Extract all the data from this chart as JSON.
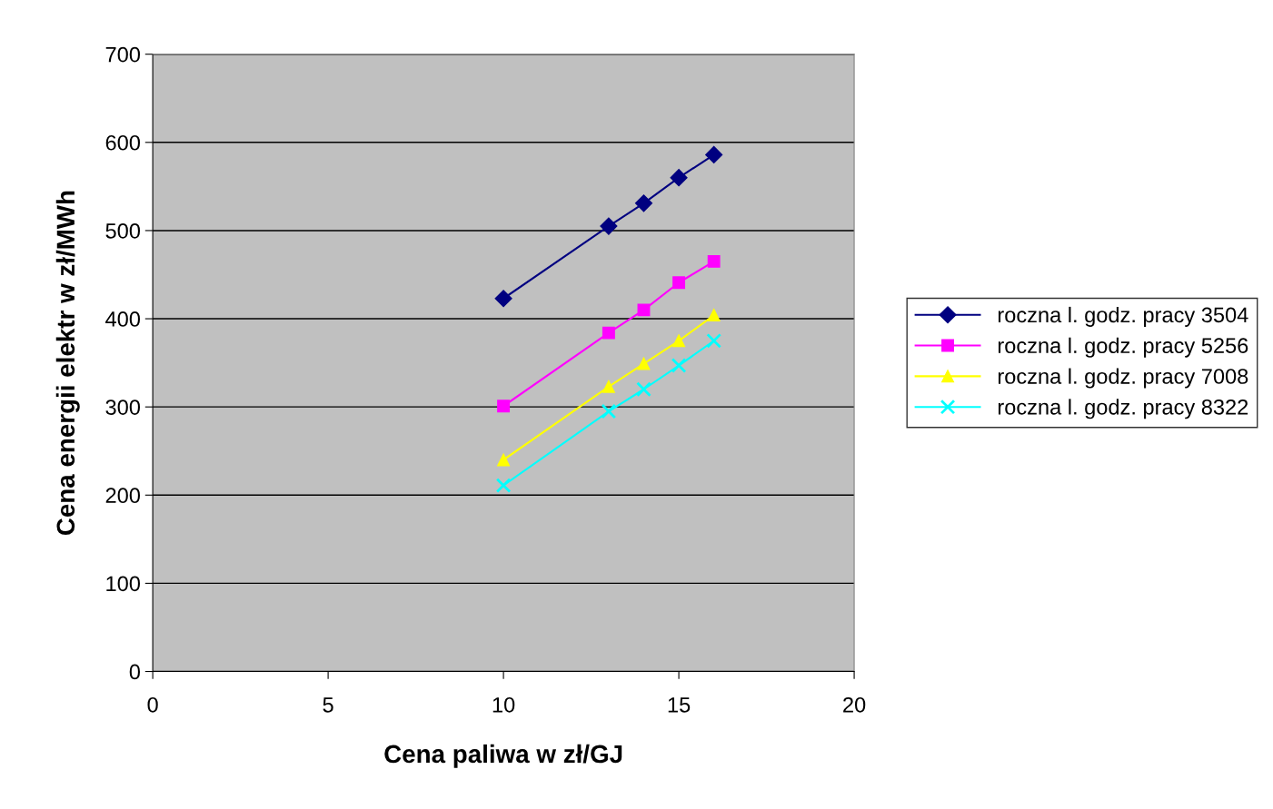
{
  "chart_data": {
    "type": "line",
    "xlabel": "Cena paliwa w zł/GJ",
    "ylabel": "Cena energii elektr w zł/MWh",
    "xlim": [
      0,
      20
    ],
    "xticks": [
      0,
      5,
      10,
      15,
      20
    ],
    "ylim": [
      0,
      700
    ],
    "yticks": [
      0,
      100,
      200,
      300,
      400,
      500,
      600,
      700
    ],
    "grid": "y",
    "legend": "right",
    "series": [
      {
        "name": "roczna l. godz. pracy 3504",
        "color": "#000080",
        "marker": "diamond",
        "x": [
          10,
          13,
          14,
          15,
          16
        ],
        "values": [
          423,
          505,
          531,
          560,
          586
        ]
      },
      {
        "name": "roczna l. godz. pracy 5256",
        "color": "#ff00ff",
        "marker": "square",
        "x": [
          10,
          13,
          14,
          15,
          16
        ],
        "values": [
          301,
          384,
          410,
          441,
          465
        ]
      },
      {
        "name": "roczna l. godz. pracy 7008",
        "color": "#ffff00",
        "marker": "triangle",
        "x": [
          10,
          13,
          14,
          15,
          16
        ],
        "values": [
          240,
          323,
          349,
          375,
          404
        ]
      },
      {
        "name": "roczna l. godz. pracy 8322",
        "color": "#00ffff",
        "marker": "cross",
        "x": [
          10,
          13,
          14,
          15,
          16
        ],
        "values": [
          211,
          295,
          320,
          347,
          375
        ]
      }
    ]
  }
}
